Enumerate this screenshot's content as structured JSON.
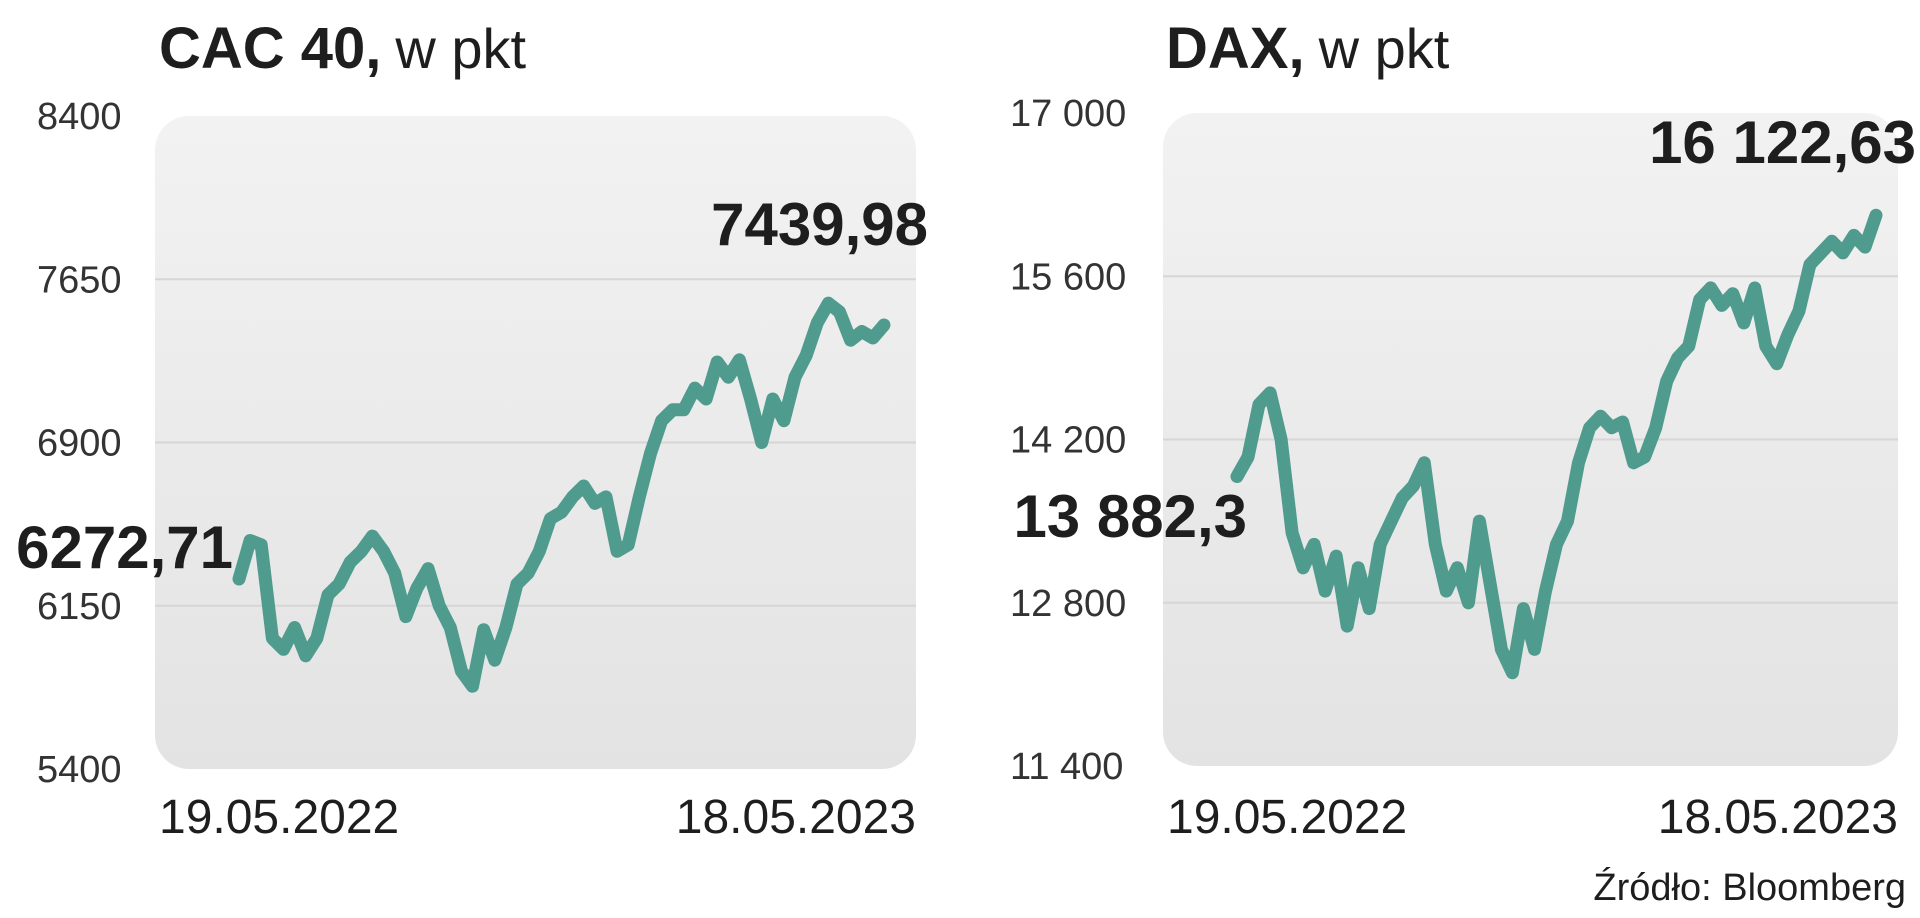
{
  "chart_data": [
    {
      "type": "line",
      "title": "CAC 40,",
      "subtitle": "w pkt",
      "categories": [
        "19.05.2022",
        null,
        null,
        null,
        null,
        null,
        null,
        null,
        null,
        null,
        null,
        null,
        null,
        null,
        null,
        null,
        null,
        null,
        null,
        null,
        null,
        null,
        null,
        null,
        null,
        null,
        null,
        null,
        null,
        null,
        null,
        null,
        null,
        null,
        null,
        null,
        null,
        null,
        null,
        null,
        null,
        null,
        null,
        null,
        null,
        null,
        null,
        null,
        null,
        null,
        null,
        null,
        null,
        null,
        null,
        null,
        null,
        null,
        "18.05.2023"
      ],
      "values": [
        6272.71,
        6450,
        6430,
        6000,
        5950,
        6050,
        5920,
        6000,
        6200,
        6250,
        6350,
        6400,
        6470,
        6400,
        6300,
        6100,
        6230,
        6320,
        6150,
        6050,
        5850,
        5780,
        6040,
        5900,
        6050,
        6250,
        6300,
        6400,
        6550,
        6580,
        6650,
        6700,
        6620,
        6650,
        6400,
        6430,
        6650,
        6850,
        7000,
        7050,
        7050,
        7150,
        7100,
        7270,
        7200,
        7280,
        7100,
        6900,
        7100,
        7000,
        7200,
        7300,
        7450,
        7540,
        7500,
        7370,
        7410,
        7380,
        7439.98
      ],
      "value_labels": [
        "6272,71",
        null,
        null,
        null,
        null,
        null,
        null,
        null,
        null,
        null,
        null,
        null,
        null,
        null,
        null,
        null,
        null,
        null,
        null,
        null,
        null,
        null,
        null,
        null,
        null,
        null,
        null,
        null,
        null,
        null,
        null,
        null,
        null,
        null,
        null,
        null,
        null,
        null,
        null,
        null,
        null,
        null,
        null,
        null,
        null,
        null,
        null,
        null,
        null,
        null,
        null,
        null,
        null,
        null,
        null,
        null,
        null,
        null,
        "7439,98"
      ],
      "color": "#4f9b8d",
      "ylim": [
        5400,
        8400
      ],
      "yticks": [
        5400,
        6150,
        6900,
        7650,
        8400
      ],
      "grid": true
    },
    {
      "type": "line",
      "title": "DAX,",
      "subtitle": "w pkt",
      "categories": [
        "19.05.2022",
        null,
        null,
        null,
        null,
        null,
        null,
        null,
        null,
        null,
        null,
        null,
        null,
        null,
        null,
        null,
        null,
        null,
        null,
        null,
        null,
        null,
        null,
        null,
        null,
        null,
        null,
        null,
        null,
        null,
        null,
        null,
        null,
        null,
        null,
        null,
        null,
        null,
        null,
        null,
        null,
        null,
        null,
        null,
        null,
        null,
        null,
        null,
        null,
        null,
        null,
        null,
        null,
        null,
        null,
        null,
        null,
        null,
        "18.05.2023"
      ],
      "values": [
        13882.3,
        14050,
        14500,
        14600,
        14200,
        13400,
        13100,
        13300,
        12900,
        13200,
        12600,
        13100,
        12750,
        13300,
        13500,
        13700,
        13800,
        14000,
        13300,
        12900,
        13100,
        12800,
        13500,
        12950,
        12400,
        12200,
        12750,
        12400,
        12900,
        13300,
        13500,
        14000,
        14300,
        14400,
        14300,
        14350,
        14000,
        14050,
        14300,
        14700,
        14900,
        15000,
        15400,
        15500,
        15350,
        15450,
        15200,
        15500,
        15000,
        14850,
        15100,
        15300,
        15700,
        15800,
        15900,
        15800,
        15950,
        15850,
        16122.63
      ],
      "value_labels": [
        "13 882,3",
        null,
        null,
        null,
        null,
        null,
        null,
        null,
        null,
        null,
        null,
        null,
        null,
        null,
        null,
        null,
        null,
        null,
        null,
        null,
        null,
        null,
        null,
        null,
        null,
        null,
        null,
        null,
        null,
        null,
        null,
        null,
        null,
        null,
        null,
        null,
        null,
        null,
        null,
        null,
        null,
        null,
        null,
        null,
        null,
        null,
        null,
        null,
        null,
        null,
        null,
        null,
        null,
        null,
        null,
        null,
        null,
        null,
        "16 122,63"
      ],
      "color": "#4f9b8d",
      "ylim": [
        11400,
        17000
      ],
      "yticks": [
        {
          "value": 11400,
          "label": "11 400"
        },
        {
          "value": 12800,
          "label": "12 800"
        },
        {
          "value": 14200,
          "label": "14 200"
        },
        {
          "value": 15600,
          "label": "15 600"
        },
        {
          "value": 17000,
          "label": "17 000"
        }
      ],
      "grid": true
    }
  ],
  "source": "Źródło: Bloomberg"
}
